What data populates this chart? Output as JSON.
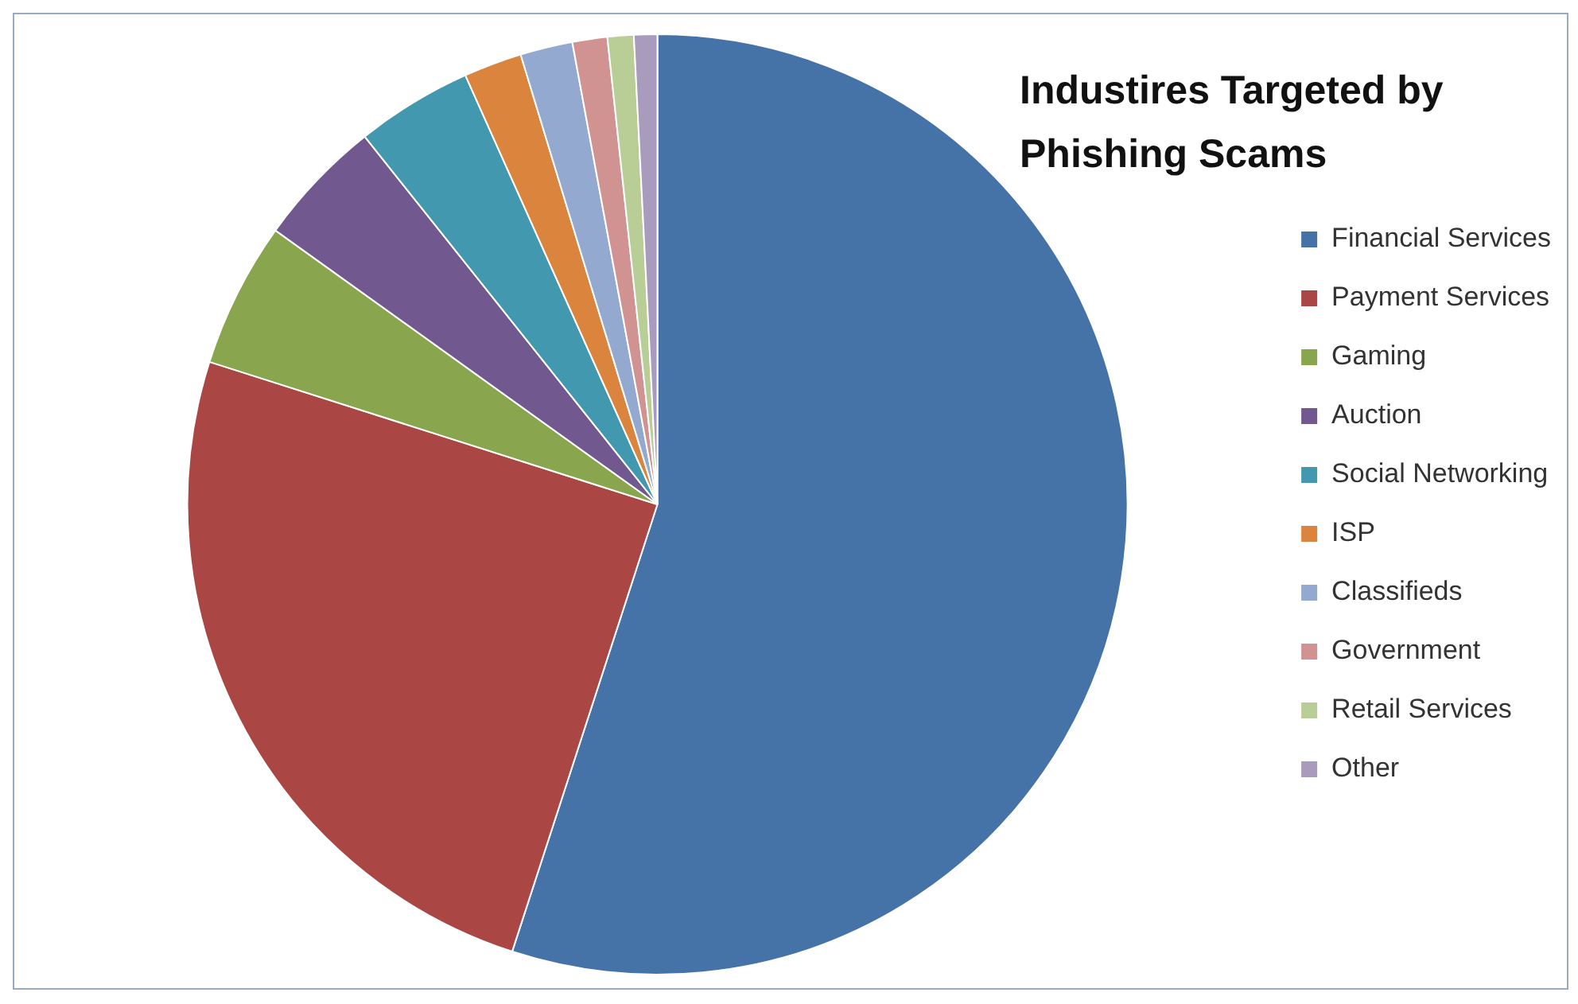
{
  "chart_data": {
    "type": "pie",
    "title": "Industires Targeted by Phishing Scams",
    "categories": [
      "Financial Services",
      "Payment Services",
      "Gaming",
      "Auction",
      "Social Networking",
      "ISP",
      "Classifieds",
      "Government",
      "Retail Services",
      "Other"
    ],
    "values": [
      55,
      24.9,
      5,
      4.4,
      4,
      2,
      1.8,
      1.2,
      0.9,
      0.8
    ],
    "colors": [
      "#4572a7",
      "#aa4643",
      "#89a54e",
      "#71588f",
      "#4198af",
      "#db843d",
      "#93a9cf",
      "#d19392",
      "#b9cd96",
      "#a99bbd"
    ],
    "legend": "right"
  }
}
